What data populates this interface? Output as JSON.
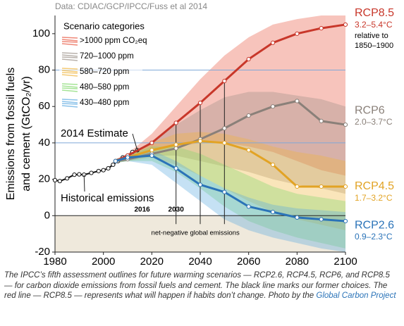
{
  "chart_data": {
    "type": "line",
    "source": "Data: CDIAC/GCP/IPCC/Fuss et al 2014",
    "ylabel": [
      "Emissions from fossil fuels",
      "and cement (GtCO₂/yr)"
    ],
    "xlim": [
      1980,
      2100
    ],
    "ylim": [
      -20,
      110
    ],
    "xticks": [
      1980,
      2000,
      2020,
      2040,
      2060,
      2080,
      2100
    ],
    "yticks": [
      -20,
      0,
      20,
      40,
      60,
      80,
      100
    ],
    "hlines": [
      40,
      80
    ],
    "vlines": [
      2030,
      2040,
      2050
    ],
    "legend_title": "Scenario categories",
    "band_x": [
      2005,
      2010,
      2020,
      2030,
      2040,
      2050,
      2060,
      2070,
      2080,
      2090,
      2100
    ],
    "bands": [
      {
        "name": ">1000 ppm CO₂eq",
        "color": "#e8553f",
        "upper": [
          31,
          34,
          45,
          60,
          75,
          88,
          98,
          105,
          108,
          110,
          110
        ],
        "lower": [
          29,
          31,
          35,
          38,
          40,
          40,
          38,
          35,
          30,
          25,
          22
        ]
      },
      {
        "name": "720–1000 ppm",
        "color": "#9a9088",
        "upper": [
          31,
          33,
          41,
          50,
          58,
          65,
          68,
          68,
          66,
          64,
          60
        ],
        "lower": [
          29,
          30,
          33,
          33,
          30,
          27,
          24,
          20,
          17,
          15,
          12
        ]
      },
      {
        "name": "580–720 ppm",
        "color": "#f0b43a",
        "upper": [
          31,
          33,
          40,
          45,
          46,
          45,
          42,
          38,
          35,
          33,
          30
        ],
        "lower": [
          29,
          30,
          32,
          28,
          22,
          15,
          8,
          2,
          -2,
          -5,
          -8
        ]
      },
      {
        "name": "480–580 ppm",
        "color": "#7fd86a",
        "upper": [
          31,
          33,
          38,
          38,
          34,
          28,
          22,
          16,
          12,
          10,
          8
        ],
        "lower": [
          29,
          30,
          30,
          24,
          15,
          5,
          -3,
          -8,
          -12,
          -15,
          -18
        ]
      },
      {
        "name": "430–480 ppm",
        "color": "#5aa8e0",
        "upper": [
          31,
          33,
          36,
          30,
          22,
          15,
          10,
          6,
          4,
          3,
          2
        ],
        "lower": [
          29,
          30,
          28,
          18,
          8,
          -2,
          -8,
          -12,
          -15,
          -18,
          -20
        ]
      }
    ],
    "series": [
      {
        "name": "Historical emissions",
        "color": "#111111",
        "x": [
          1980,
          1982,
          1985,
          1988,
          1990,
          1992,
          1995,
          1998,
          2000,
          2002,
          2004,
          2006,
          2008,
          2010,
          2012,
          2014
        ],
        "values": [
          19.5,
          19,
          20.5,
          22.5,
          22.7,
          22.5,
          23.5,
          24.5,
          25,
          26,
          28,
          30,
          32,
          33,
          35,
          36
        ]
      },
      {
        "name": "RCP8.5",
        "range_label": "3.2–5.4°C",
        "note": [
          "relative to",
          "1850–1900"
        ],
        "color": "#c8372a",
        "x": [
          2005,
          2010,
          2020,
          2030,
          2040,
          2050,
          2060,
          2070,
          2080,
          2090,
          2100
        ],
        "values": [
          30,
          33,
          40,
          51,
          62,
          74,
          86,
          95,
          100,
          103,
          105
        ]
      },
      {
        "name": "RCP6",
        "range_label": "2.0–3.7°C",
        "color": "#8a8079",
        "x": [
          2005,
          2010,
          2020,
          2030,
          2040,
          2050,
          2060,
          2070,
          2080,
          2090,
          2100
        ],
        "values": [
          30,
          31,
          34,
          37,
          42,
          48,
          55,
          60,
          63,
          52,
          50
        ]
      },
      {
        "name": "RCP4.5",
        "range_label": "1.7–3.2°C",
        "color": "#e2a324",
        "x": [
          2005,
          2010,
          2020,
          2030,
          2040,
          2050,
          2060,
          2070,
          2080,
          2090,
          2100
        ],
        "values": [
          30,
          32,
          36,
          39,
          41,
          40,
          36,
          28,
          16,
          16,
          16
        ]
      },
      {
        "name": "RCP2.6",
        "range_label": "0.9–2.3°C",
        "color": "#2a73b8",
        "x": [
          2005,
          2010,
          2020,
          2030,
          2040,
          2050,
          2060,
          2070,
          2080,
          2090,
          2100
        ],
        "values": [
          30,
          32,
          33,
          26,
          17,
          13,
          5,
          2,
          -1,
          -2,
          -3
        ]
      }
    ],
    "annotations": {
      "estimate": "2014 Estimate",
      "year_a": "2016",
      "year_b": "2030",
      "net_negative": "net-negative global emissions"
    },
    "caption": {
      "text": "The IPCC’s fifth assessment outlines for future warming scenarios — RCP2.6, RCP4.5, RCP6, and RCP8.5 — for carbon dioxide emissions from fossil fuels and cement. The black line marks our former choices. The red line — RCP8.5 — represents what will happen if habits don’t change. Photo by the",
      "link": "Global Carbon Project"
    }
  }
}
